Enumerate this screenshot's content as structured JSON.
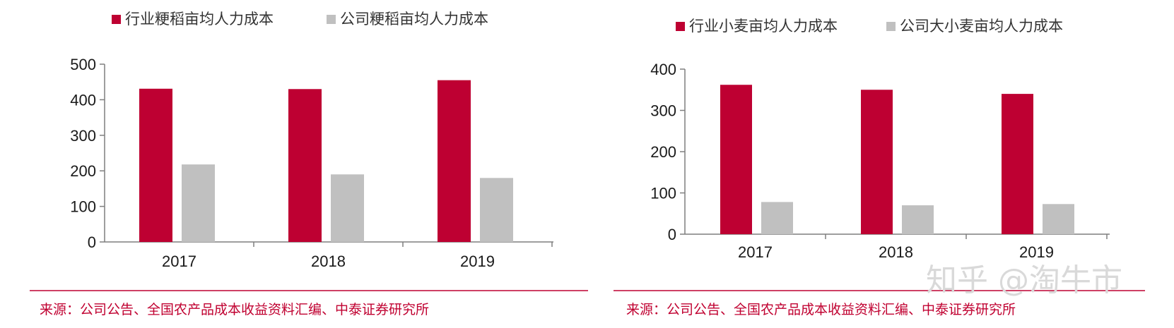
{
  "colors": {
    "industry": "#be0032",
    "company": "#c0c0c0",
    "axis": "#7f7f7f",
    "rule": "#be0032",
    "source": "#c00030"
  },
  "chart_data": [
    {
      "type": "bar",
      "title": "",
      "xlabel": "",
      "ylabel": "",
      "categories": [
        "2017",
        "2018",
        "2019"
      ],
      "series": [
        {
          "name": "行业粳稻亩均人力成本",
          "values": [
            431,
            430,
            455
          ]
        },
        {
          "name": "公司粳稻亩均人力成本",
          "values": [
            218,
            190,
            180
          ]
        }
      ],
      "ylim": [
        0,
        500
      ],
      "yticks": [
        0,
        100,
        200,
        300,
        400,
        500
      ],
      "legend": "top",
      "grid": false
    },
    {
      "type": "bar",
      "title": "",
      "xlabel": "",
      "ylabel": "",
      "categories": [
        "2017",
        "2018",
        "2019"
      ],
      "series": [
        {
          "name": "行业小麦亩均人力成本",
          "values": [
            362,
            350,
            340
          ]
        },
        {
          "name": "公司大小麦亩均人力成本",
          "values": [
            78,
            70,
            73
          ]
        }
      ],
      "ylim": [
        0,
        400
      ],
      "yticks": [
        0,
        100,
        200,
        300,
        400
      ],
      "legend": "top",
      "grid": false
    }
  ],
  "sources": [
    "来源：公司公告、全国农产品成本收益资料汇编、中泰证券研究所",
    "来源：公司公告、全国农产品成本收益资料汇编、中泰证券研究所"
  ],
  "watermark": "知乎 @淘牛市"
}
